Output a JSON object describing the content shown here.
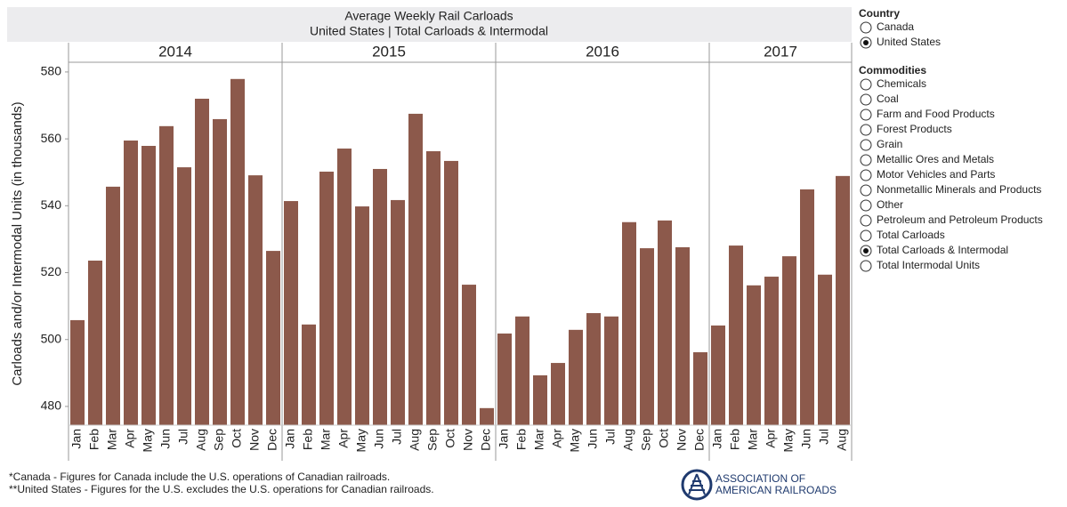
{
  "chart_data": {
    "type": "bar",
    "title": "Average Weekly Rail Carloads",
    "subtitle": "United States | Total Carloads & Intermodal",
    "y_label": "Carloads and/or Intermodal Units (in thousands)",
    "color": "#8c594b",
    "ylim": [
      474.4,
      582.9
    ],
    "yticks": [
      480,
      500,
      520,
      540,
      560,
      580
    ],
    "panels": [
      {
        "label": "2014",
        "categories": [
          "Jan",
          "Feb",
          "Mar",
          "Apr",
          "May",
          "Jun",
          "Jul",
          "Aug",
          "Sep",
          "Oct",
          "Nov",
          "Dec"
        ],
        "values": [
          505.8,
          523.6,
          545.7,
          559.5,
          557.9,
          563.8,
          551.5,
          572.0,
          565.9,
          577.9,
          549.1,
          526.5
        ]
      },
      {
        "label": "2015",
        "categories": [
          "Jan",
          "Feb",
          "Mar",
          "Apr",
          "May",
          "Jun",
          "Jul",
          "Aug",
          "Sep",
          "Oct",
          "Nov",
          "Dec"
        ],
        "values": [
          541.4,
          504.5,
          550.2,
          557.1,
          539.8,
          551.0,
          541.7,
          567.5,
          556.3,
          553.4,
          516.4,
          479.5
        ]
      },
      {
        "label": "2016",
        "categories": [
          "Jan",
          "Feb",
          "Mar",
          "Apr",
          "May",
          "Jun",
          "Jul",
          "Aug",
          "Sep",
          "Oct",
          "Nov",
          "Dec"
        ],
        "values": [
          501.8,
          506.9,
          489.3,
          493.0,
          502.9,
          507.9,
          506.9,
          535.1,
          527.3,
          535.6,
          527.6,
          496.2
        ]
      },
      {
        "label": "2017",
        "categories": [
          "Jan",
          "Feb",
          "Mar",
          "Apr",
          "May",
          "Jun",
          "Jul",
          "Aug"
        ],
        "values": [
          504.2,
          528.1,
          516.2,
          518.8,
          524.9,
          544.9,
          519.4,
          548.9
        ]
      }
    ]
  },
  "filters": [
    {
      "title": "Country",
      "options": [
        {
          "label": "Canada",
          "selected": false
        },
        {
          "label": "United States",
          "selected": true
        }
      ]
    },
    {
      "title": "Commodities",
      "options": [
        {
          "label": "Chemicals",
          "selected": false
        },
        {
          "label": "Coal",
          "selected": false
        },
        {
          "label": "Farm and Food Products",
          "selected": false
        },
        {
          "label": "Forest Products",
          "selected": false
        },
        {
          "label": "Grain",
          "selected": false
        },
        {
          "label": "Metallic Ores and Metals",
          "selected": false
        },
        {
          "label": "Motor Vehicles and Parts",
          "selected": false
        },
        {
          "label": "Nonmetallic Minerals and Products",
          "selected": false
        },
        {
          "label": "Other",
          "selected": false
        },
        {
          "label": "Petroleum and Petroleum Products",
          "selected": false
        },
        {
          "label": "Total Carloads",
          "selected": false
        },
        {
          "label": "Total Carloads & Intermodal",
          "selected": true
        },
        {
          "label": "Total Intermodal Units",
          "selected": false
        }
      ]
    }
  ],
  "footnotes": [
    "*Canada - Figures for Canada include the U.S. operations of Canadian railroads.",
    "**United States - Figures for the U.S. excludes the U.S. operations for Canadian railroads."
  ],
  "logo": {
    "line1": "ASSOCIATION OF",
    "line2": "AMERICAN RAILROADS"
  }
}
